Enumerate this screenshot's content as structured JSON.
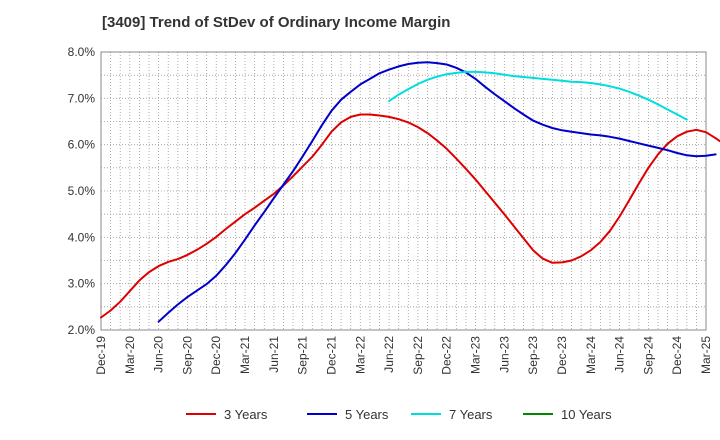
{
  "chart_data": {
    "type": "line",
    "title": "[3409]  Trend of StDev of Ordinary Income Margin",
    "xlabel": "",
    "ylabel": "",
    "ylim": [
      2.0,
      8.0
    ],
    "y_ticks": [
      "2.0%",
      "3.0%",
      "4.0%",
      "5.0%",
      "6.0%",
      "7.0%",
      "8.0%"
    ],
    "x_ticks": [
      "Dec-19",
      "Mar-20",
      "Jun-20",
      "Sep-20",
      "Dec-20",
      "Mar-21",
      "Jun-21",
      "Sep-21",
      "Dec-21",
      "Mar-22",
      "Jun-22",
      "Sep-22",
      "Dec-22",
      "Mar-23",
      "Jun-23",
      "Sep-23",
      "Dec-23",
      "Mar-24",
      "Jun-24",
      "Sep-24",
      "Dec-24",
      "Mar-25"
    ],
    "grid": true,
    "legend_position": "bottom",
    "series": [
      {
        "name": "3 Years",
        "color": "#dd0000",
        "start_index": 0,
        "values": [
          2.27,
          2.42,
          2.61,
          2.84,
          3.07,
          3.25,
          3.38,
          3.47,
          3.53,
          3.62,
          3.73,
          3.86,
          4.01,
          4.18,
          4.34,
          4.5,
          4.64,
          4.79,
          4.94,
          5.12,
          5.32,
          5.53,
          5.74,
          6.0,
          6.28,
          6.48,
          6.6,
          6.65,
          6.65,
          6.63,
          6.6,
          6.55,
          6.48,
          6.38,
          6.25,
          6.09,
          5.91,
          5.7,
          5.48,
          5.25,
          5.0,
          4.75,
          4.5,
          4.24,
          3.98,
          3.72,
          3.54,
          3.45,
          3.46,
          3.5,
          3.59,
          3.72,
          3.9,
          4.14,
          4.45,
          4.8,
          5.16,
          5.5,
          5.79,
          6.02,
          6.18,
          6.28,
          6.32,
          6.27,
          6.14,
          6.0,
          5.9,
          5.79,
          5.68,
          5.56,
          5.45
        ]
      },
      {
        "name": "5 Years",
        "color": "#0000cc",
        "start_index": 6,
        "values": [
          2.18,
          2.37,
          2.55,
          2.71,
          2.85,
          2.99,
          3.17,
          3.4,
          3.66,
          3.95,
          4.26,
          4.55,
          4.85,
          5.14,
          5.43,
          5.75,
          6.08,
          6.42,
          6.73,
          6.97,
          7.14,
          7.3,
          7.42,
          7.54,
          7.62,
          7.69,
          7.74,
          7.77,
          7.78,
          7.76,
          7.73,
          7.66,
          7.56,
          7.42,
          7.25,
          7.09,
          6.94,
          6.79,
          6.65,
          6.52,
          6.43,
          6.36,
          6.31,
          6.28,
          6.25,
          6.22,
          6.2,
          6.17,
          6.13,
          6.08,
          6.03,
          5.98,
          5.93,
          5.88,
          5.82,
          5.77,
          5.75,
          5.76,
          5.79
        ]
      },
      {
        "name": "7 Years",
        "color": "#00dddd",
        "start_index": 30,
        "values": [
          6.94,
          7.08,
          7.2,
          7.31,
          7.4,
          7.47,
          7.52,
          7.55,
          7.57,
          7.57,
          7.56,
          7.54,
          7.51,
          7.48,
          7.46,
          7.44,
          7.42,
          7.4,
          7.38,
          7.36,
          7.35,
          7.33,
          7.3,
          7.26,
          7.21,
          7.14,
          7.06,
          6.97,
          6.87,
          6.76,
          6.65,
          6.54
        ]
      },
      {
        "name": "10 Years",
        "color": "#008800",
        "start_index": 0,
        "values": []
      }
    ]
  }
}
